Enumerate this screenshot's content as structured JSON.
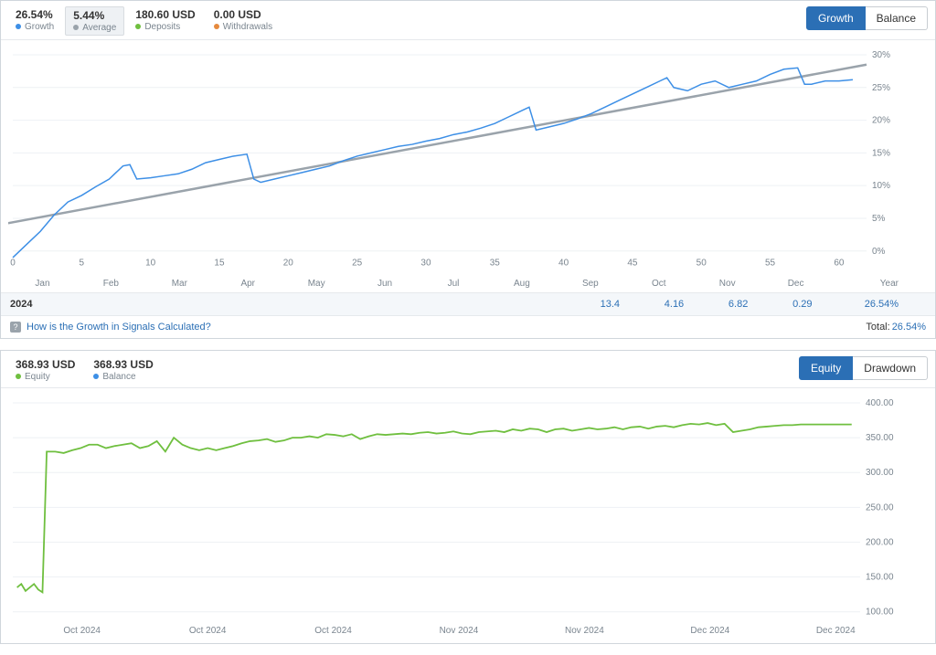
{
  "panel1": {
    "stats": [
      {
        "value": "26.54%",
        "label": "Growth",
        "dot": "#3d8fe6"
      },
      {
        "value": "5.44%",
        "label": "Average",
        "dot": "#9aa3ab",
        "active": true
      },
      {
        "value": "180.60 USD",
        "label": "Deposits",
        "dot": "#6fbf3f"
      },
      {
        "value": "0.00 USD",
        "label": "Withdrawals",
        "dot": "#e68a3d"
      }
    ],
    "tabs": {
      "active": "Growth",
      "inactive": "Balance"
    },
    "chart": {
      "type": "line",
      "xlim": [
        0,
        62
      ],
      "ylim": [
        0,
        30
      ],
      "xticks": [
        0,
        5,
        10,
        15,
        20,
        25,
        30,
        35,
        40,
        45,
        50,
        55,
        60
      ],
      "yticks": [
        0,
        5,
        10,
        15,
        20,
        25,
        30
      ],
      "ytick_labels": [
        "0%",
        "5%",
        "10%",
        "15%",
        "20%",
        "25%",
        "30%"
      ],
      "grid_color": "#eef1f4",
      "growth_color": "#3d8fe6",
      "average_color": "#9aa3ab",
      "background": "#ffffff",
      "line_width": 1.5,
      "avg_line_width": 2.5,
      "growth_points": [
        [
          0,
          -1
        ],
        [
          1,
          1
        ],
        [
          2,
          3
        ],
        [
          3,
          5.5
        ],
        [
          4,
          7.5
        ],
        [
          5,
          8.5
        ],
        [
          6,
          9.8
        ],
        [
          7,
          11
        ],
        [
          7.5,
          12
        ],
        [
          8,
          13
        ],
        [
          8.5,
          13.2
        ],
        [
          9,
          11
        ],
        [
          10,
          11.2
        ],
        [
          11,
          11.5
        ],
        [
          12,
          11.8
        ],
        [
          13,
          12.5
        ],
        [
          14,
          13.5
        ],
        [
          15,
          14
        ],
        [
          16,
          14.5
        ],
        [
          17,
          14.8
        ],
        [
          17.5,
          11
        ],
        [
          18,
          10.5
        ],
        [
          19,
          11
        ],
        [
          20,
          11.5
        ],
        [
          21,
          12
        ],
        [
          22,
          12.5
        ],
        [
          23,
          13
        ],
        [
          24,
          13.8
        ],
        [
          25,
          14.5
        ],
        [
          26,
          15
        ],
        [
          27,
          15.5
        ],
        [
          28,
          16
        ],
        [
          29,
          16.3
        ],
        [
          30,
          16.8
        ],
        [
          31,
          17.2
        ],
        [
          32,
          17.8
        ],
        [
          33,
          18.2
        ],
        [
          34,
          18.8
        ],
        [
          35,
          19.5
        ],
        [
          36,
          20.5
        ],
        [
          37,
          21.5
        ],
        [
          37.5,
          22
        ],
        [
          38,
          18.5
        ],
        [
          39,
          19
        ],
        [
          40,
          19.5
        ],
        [
          41,
          20.2
        ],
        [
          42,
          21
        ],
        [
          43,
          22
        ],
        [
          44,
          23
        ],
        [
          45,
          24
        ],
        [
          46,
          25
        ],
        [
          47,
          26
        ],
        [
          47.5,
          26.5
        ],
        [
          48,
          25
        ],
        [
          49,
          24.5
        ],
        [
          50,
          25.5
        ],
        [
          51,
          26
        ],
        [
          52,
          25
        ],
        [
          53,
          25.5
        ],
        [
          54,
          26
        ],
        [
          55,
          27
        ],
        [
          56,
          27.8
        ],
        [
          57,
          28
        ],
        [
          57.5,
          25.5
        ],
        [
          58,
          25.5
        ],
        [
          59,
          26
        ],
        [
          60,
          26
        ],
        [
          61,
          26.2
        ]
      ],
      "average_line": [
        [
          -1,
          4
        ],
        [
          62,
          28.5
        ]
      ]
    },
    "months": [
      "Jan",
      "Feb",
      "Mar",
      "Apr",
      "May",
      "Jun",
      "Jul",
      "Aug",
      "Sep",
      "Oct",
      "Nov",
      "Dec",
      "Year"
    ],
    "year_row": {
      "year": "2024",
      "values": [
        "",
        "",
        "",
        "",
        "",
        "",
        "",
        "",
        "13.4",
        "4.16",
        "6.82",
        "0.29",
        "26.54%"
      ]
    },
    "help": {
      "text": "How is the Growth in Signals Calculated?"
    },
    "total": {
      "label": "Total:",
      "value": "26.54%"
    }
  },
  "panel2": {
    "stats": [
      {
        "value": "368.93 USD",
        "label": "Equity",
        "dot": "#6fbf3f"
      },
      {
        "value": "368.93 USD",
        "label": "Balance",
        "dot": "#3d8fe6"
      }
    ],
    "tabs": {
      "active": "Equity",
      "inactive": "Drawdown"
    },
    "chart": {
      "type": "line",
      "xlim": [
        0,
        100
      ],
      "ylim": [
        100,
        400
      ],
      "yticks": [
        100,
        150,
        200,
        250,
        300,
        350,
        400
      ],
      "ytick_labels": [
        "100.00",
        "150.00",
        "200.00",
        "250.00",
        "300.00",
        "350.00",
        "400.00"
      ],
      "grid_color": "#eef1f4",
      "equity_color": "#6fbf3f",
      "background": "#ffffff",
      "line_width": 1.8,
      "equity_points": [
        [
          0.5,
          135
        ],
        [
          1,
          140
        ],
        [
          1.5,
          130
        ],
        [
          2,
          135
        ],
        [
          2.5,
          140
        ],
        [
          3,
          132
        ],
        [
          3.5,
          128
        ],
        [
          4,
          330
        ],
        [
          5,
          330
        ],
        [
          6,
          328
        ],
        [
          7,
          332
        ],
        [
          8,
          335
        ],
        [
          9,
          340
        ],
        [
          10,
          340
        ],
        [
          11,
          335
        ],
        [
          12,
          338
        ],
        [
          13,
          340
        ],
        [
          14,
          342
        ],
        [
          15,
          335
        ],
        [
          16,
          338
        ],
        [
          17,
          345
        ],
        [
          18,
          330
        ],
        [
          19,
          350
        ],
        [
          20,
          340
        ],
        [
          21,
          335
        ],
        [
          22,
          332
        ],
        [
          23,
          335
        ],
        [
          24,
          332
        ],
        [
          25,
          335
        ],
        [
          26,
          338
        ],
        [
          27,
          342
        ],
        [
          28,
          345
        ],
        [
          29,
          346
        ],
        [
          30,
          348
        ],
        [
          31,
          344
        ],
        [
          32,
          346
        ],
        [
          33,
          350
        ],
        [
          34,
          350
        ],
        [
          35,
          352
        ],
        [
          36,
          350
        ],
        [
          37,
          355
        ],
        [
          38,
          354
        ],
        [
          39,
          352
        ],
        [
          40,
          355
        ],
        [
          41,
          348
        ],
        [
          42,
          352
        ],
        [
          43,
          355
        ],
        [
          44,
          354
        ],
        [
          45,
          355
        ],
        [
          46,
          356
        ],
        [
          47,
          355
        ],
        [
          48,
          357
        ],
        [
          49,
          358
        ],
        [
          50,
          356
        ],
        [
          51,
          357
        ],
        [
          52,
          359
        ],
        [
          53,
          356
        ],
        [
          54,
          355
        ],
        [
          55,
          358
        ],
        [
          56,
          359
        ],
        [
          57,
          360
        ],
        [
          58,
          358
        ],
        [
          59,
          362
        ],
        [
          60,
          360
        ],
        [
          61,
          363
        ],
        [
          62,
          362
        ],
        [
          63,
          358
        ],
        [
          64,
          362
        ],
        [
          65,
          363
        ],
        [
          66,
          360
        ],
        [
          67,
          362
        ],
        [
          68,
          364
        ],
        [
          69,
          362
        ],
        [
          70,
          363
        ],
        [
          71,
          365
        ],
        [
          72,
          362
        ],
        [
          73,
          365
        ],
        [
          74,
          366
        ],
        [
          75,
          363
        ],
        [
          76,
          366
        ],
        [
          77,
          367
        ],
        [
          78,
          365
        ],
        [
          79,
          368
        ],
        [
          80,
          370
        ],
        [
          81,
          369
        ],
        [
          82,
          371
        ],
        [
          83,
          368
        ],
        [
          84,
          370
        ],
        [
          85,
          358
        ],
        [
          86,
          360
        ],
        [
          87,
          362
        ],
        [
          88,
          365
        ],
        [
          89,
          366
        ],
        [
          90,
          367
        ],
        [
          91,
          368
        ],
        [
          92,
          368
        ],
        [
          93,
          369
        ],
        [
          94,
          369
        ],
        [
          95,
          369
        ],
        [
          96,
          369
        ],
        [
          97,
          369
        ],
        [
          98,
          369
        ],
        [
          99,
          369
        ]
      ]
    },
    "xlabels": [
      "Oct 2024",
      "Oct 2024",
      "Oct 2024",
      "Nov 2024",
      "Nov 2024",
      "Dec 2024",
      "Dec 2024"
    ]
  }
}
